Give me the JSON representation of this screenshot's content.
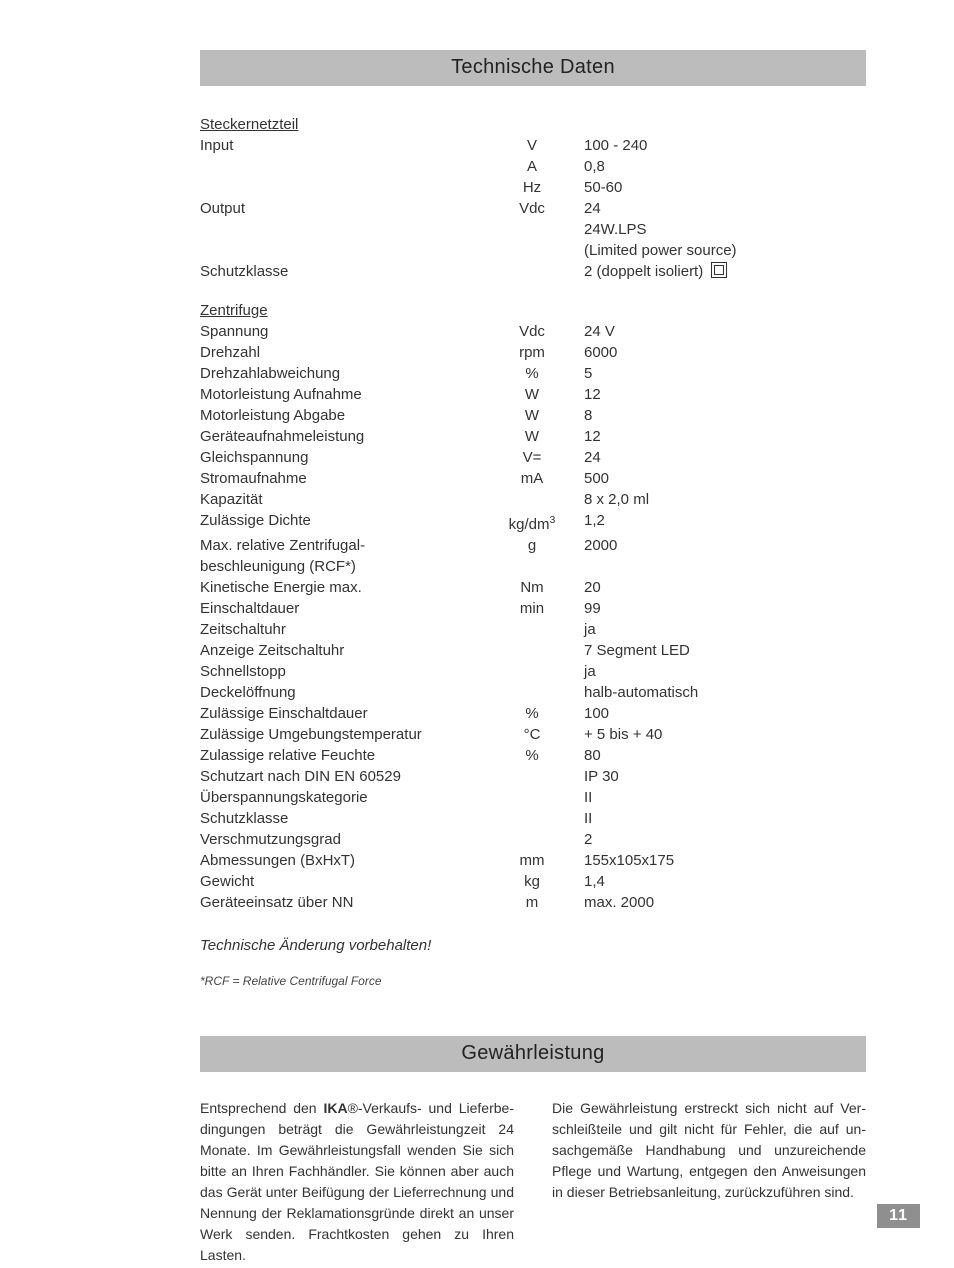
{
  "headings": {
    "tech": "Technische Daten",
    "warranty": "Gewährleistung"
  },
  "sections": [
    {
      "title": "Steckernetzteil",
      "rows": [
        {
          "label": "Input",
          "unit": "V",
          "value": "100 - 240"
        },
        {
          "label": "",
          "unit": "A",
          "value": "0,8"
        },
        {
          "label": "",
          "unit": "Hz",
          "value": "50-60"
        },
        {
          "label": "Output",
          "unit": "Vdc",
          "value": "24"
        },
        {
          "label": "",
          "unit": "",
          "value": "24W.LPS"
        },
        {
          "label": "",
          "unit": "",
          "value": "(Limited power source)"
        },
        {
          "label": "Schutzklasse",
          "unit": "",
          "value": "2 (doppelt isoliert)",
          "icon": "double-insulated"
        }
      ]
    },
    {
      "title": "Zentrifuge",
      "rows": [
        {
          "label": "Spannung",
          "unit": "Vdc",
          "value": "24 V"
        },
        {
          "label": "Drehzahl",
          "unit": "rpm",
          "value": "6000"
        },
        {
          "label": "Drehzahlabweichung",
          "unit": "%",
          "value": "5"
        },
        {
          "label": "Motorleistung Aufnahme",
          "unit": "W",
          "value": "12"
        },
        {
          "label": "Motorleistung Abgabe",
          "unit": "W",
          "value": "8"
        },
        {
          "label": "Geräteaufnahmeleistung",
          "unit": "W",
          "value": "12"
        },
        {
          "label": "Gleichspannung",
          "unit": "V=",
          "value": "24"
        },
        {
          "label": "Stromaufnahme",
          "unit": "mA",
          "value": "500"
        },
        {
          "label": "Kapazität",
          "unit": "",
          "value": "8 x 2,0 ml"
        },
        {
          "label": "Zulässige Dichte",
          "unit": "kg/dm³",
          "value": "1,2"
        },
        {
          "label": "Max. relative Zentrifugal-",
          "unit": "g",
          "value": "2000"
        },
        {
          "label": "beschleunigung (RCF*)",
          "unit": "",
          "value": ""
        },
        {
          "label": "Kinetische Energie max.",
          "unit": "Nm",
          "value": "20"
        },
        {
          "label": "Einschaltdauer",
          "unit": "min",
          "value": "99"
        },
        {
          "label": "Zeitschaltuhr",
          "unit": "",
          "value": "ja"
        },
        {
          "label": "Anzeige Zeitschaltuhr",
          "unit": "",
          "value": "7 Segment LED"
        },
        {
          "label": "Schnellstopp",
          "unit": "",
          "value": "ja"
        },
        {
          "label": "Deckelöffnung",
          "unit": "",
          "value": "halb-automatisch"
        },
        {
          "label": "Zulässige Einschaltdauer",
          "unit": "%",
          "value": "100"
        },
        {
          "label": "Zulässige Umgebungstemperatur",
          "unit": "°C",
          "value": "+ 5 bis + 40"
        },
        {
          "label": "Zulassige relative Feuchte",
          "unit": "%",
          "value": "80"
        },
        {
          "label": "Schutzart nach DIN EN 60529",
          "unit": "",
          "value": "IP 30"
        },
        {
          "label": "Überspannungskategorie",
          "unit": "",
          "value": "II"
        },
        {
          "label": "Schutzklasse",
          "unit": "",
          "value": "II"
        },
        {
          "label": "Verschmutzungsgrad",
          "unit": "",
          "value": "2"
        },
        {
          "label": "Abmessungen (BxHxT)",
          "unit": "mm",
          "value": "155x105x175"
        },
        {
          "label": "Gewicht",
          "unit": "kg",
          "value": "1,4"
        },
        {
          "label": "Geräteeinsatz über NN",
          "unit": "m",
          "value": "max. 2000"
        }
      ]
    }
  ],
  "notes": {
    "change": "Technische Änderung vorbehalten!",
    "rcf": "*RCF = Relative Centrifugal Force"
  },
  "warranty": {
    "col1_pre": "Entsprechend den ",
    "brand": "IKA",
    "col1_post": "®-Verkaufs- und Lieferbe­dingungen beträgt die Gewährleistungzeit 24 Monate. Im Gewährleistungsfall wenden Sie sich bitte an Ihren Fachhändler. Sie können aber auch das Gerät unter Beifügung der Lieferrechnung und Nennung der Reklamationsgründe direkt an unser Werk senden. Frachtkosten gehen zu Ihren Lasten.",
    "col2": "Die Gewährleistung erstreckt sich nicht auf Ver­schleißteile und gilt nicht für Fehler, die auf un­sachgemäße Handhabung und unzureichende Pflege und Wartung, entgegen den Anweisun­gen in dieser Betriebsanleitung, zurückzuführen sind."
  },
  "page": "11"
}
